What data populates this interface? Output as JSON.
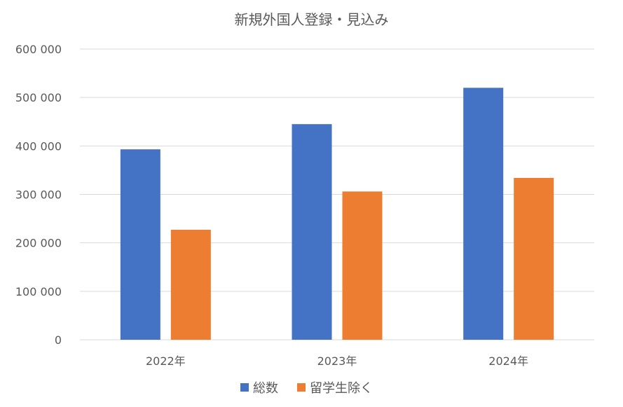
{
  "chart_data": {
    "type": "bar",
    "title": "新規外国人登録・見込み",
    "xlabel": "",
    "ylabel": "",
    "categories": [
      "2022年",
      "2023年",
      "2024年"
    ],
    "series": [
      {
        "name": "総数",
        "color": "#4472C4",
        "values": [
          393000,
          445000,
          520000
        ]
      },
      {
        "name": "留学生除く",
        "color": "#ED7D31",
        "values": [
          227000,
          306000,
          334000
        ]
      }
    ],
    "ylim": [
      0,
      600000
    ],
    "yticks": [
      {
        "value": 0,
        "label": "0"
      },
      {
        "value": 100000,
        "label": "100 000"
      },
      {
        "value": 200000,
        "label": "200 000"
      },
      {
        "value": 300000,
        "label": "300 000"
      },
      {
        "value": 400000,
        "label": "400 000"
      },
      {
        "value": 500000,
        "label": "500 000"
      },
      {
        "value": 600000,
        "label": "600 000"
      }
    ],
    "grid": true,
    "legend_position": "bottom",
    "gridline_color": "#D9D9D9",
    "text_color": "#595959"
  }
}
